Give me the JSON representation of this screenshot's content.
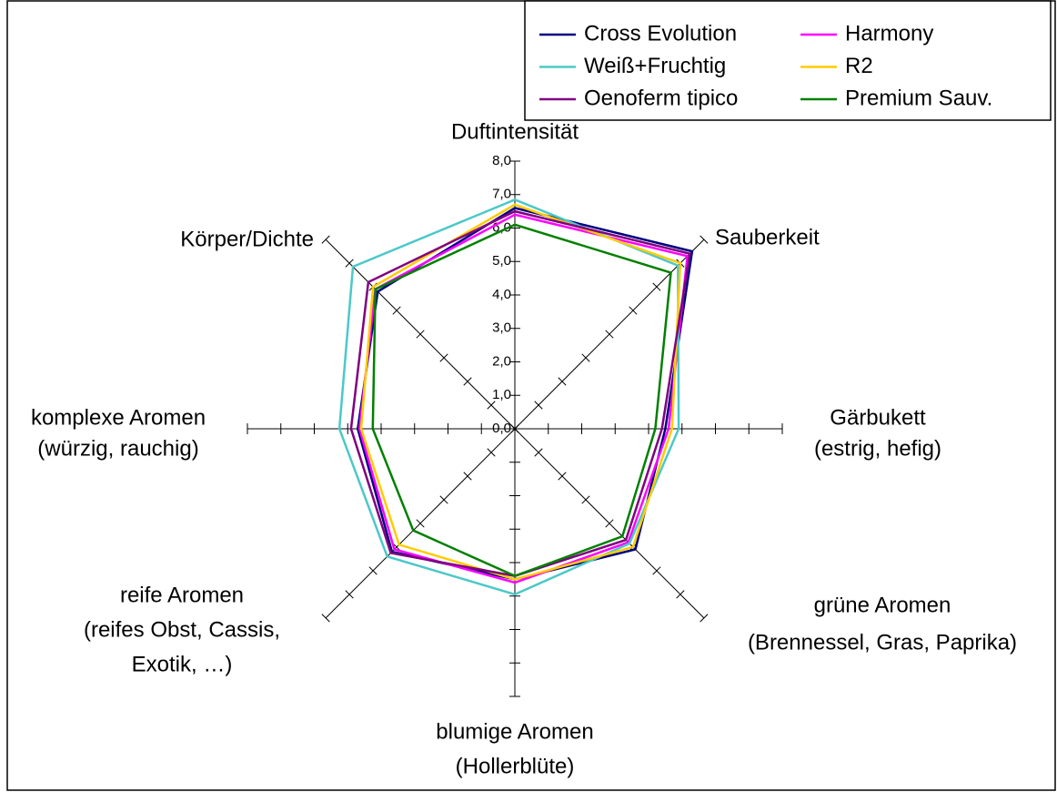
{
  "chart_data": {
    "type": "radar",
    "categories": [
      [
        "Duftintensität"
      ],
      [
        "Sauberkeit"
      ],
      [
        "Gärbukett",
        "(estrig, hefig)"
      ],
      [
        "grüne Aromen",
        "(Brennessel, Gras, Paprika)"
      ],
      [
        "blumige Aromen",
        "(Hollerblüte)"
      ],
      [
        "reife Aromen",
        "(reifes Obst, Cassis,",
        "Exotik, …)"
      ],
      [
        "komplexe Aromen",
        "(würzig, rauchig)"
      ],
      [
        "Körper/Dichte"
      ]
    ],
    "ylim": [
      0,
      8
    ],
    "yticks": [
      {
        "value": 0,
        "label": "0,0"
      },
      {
        "value": 1,
        "label": "1,0"
      },
      {
        "value": 2,
        "label": "2,0"
      },
      {
        "value": 3,
        "label": "3,0"
      },
      {
        "value": 4,
        "label": "4,0"
      },
      {
        "value": 5,
        "label": "5,0"
      },
      {
        "value": 6,
        "label": "6,0"
      },
      {
        "value": 7,
        "label": "7,0"
      },
      {
        "value": 8,
        "label": "8,0"
      }
    ],
    "series": [
      {
        "name": "Cross Evolution",
        "color": "#000080",
        "values": [
          6.6,
          7.5,
          4.5,
          5.1,
          4.5,
          5.2,
          4.7,
          5.8
        ]
      },
      {
        "name": "Harmony",
        "color": "#ff00ff",
        "values": [
          6.4,
          7.3,
          4.6,
          4.8,
          4.6,
          5.1,
          4.65,
          5.9
        ]
      },
      {
        "name": "Weiß+Fruchtig",
        "color": "#4cc8c8",
        "values": [
          6.85,
          6.9,
          4.9,
          4.85,
          4.95,
          5.4,
          5.25,
          6.85
        ]
      },
      {
        "name": "R2",
        "color": "#ffcc00",
        "values": [
          6.7,
          7.0,
          4.7,
          5.0,
          4.5,
          4.9,
          4.6,
          6.0
        ]
      },
      {
        "name": "Oenoferm tipico",
        "color": "#800080",
        "values": [
          6.5,
          7.4,
          4.4,
          4.7,
          4.4,
          5.25,
          4.9,
          6.2
        ]
      },
      {
        "name": "Premium Sauv.",
        "color": "#008000",
        "values": [
          6.1,
          6.6,
          4.2,
          4.55,
          4.4,
          4.3,
          4.25,
          5.9
        ]
      }
    ]
  }
}
